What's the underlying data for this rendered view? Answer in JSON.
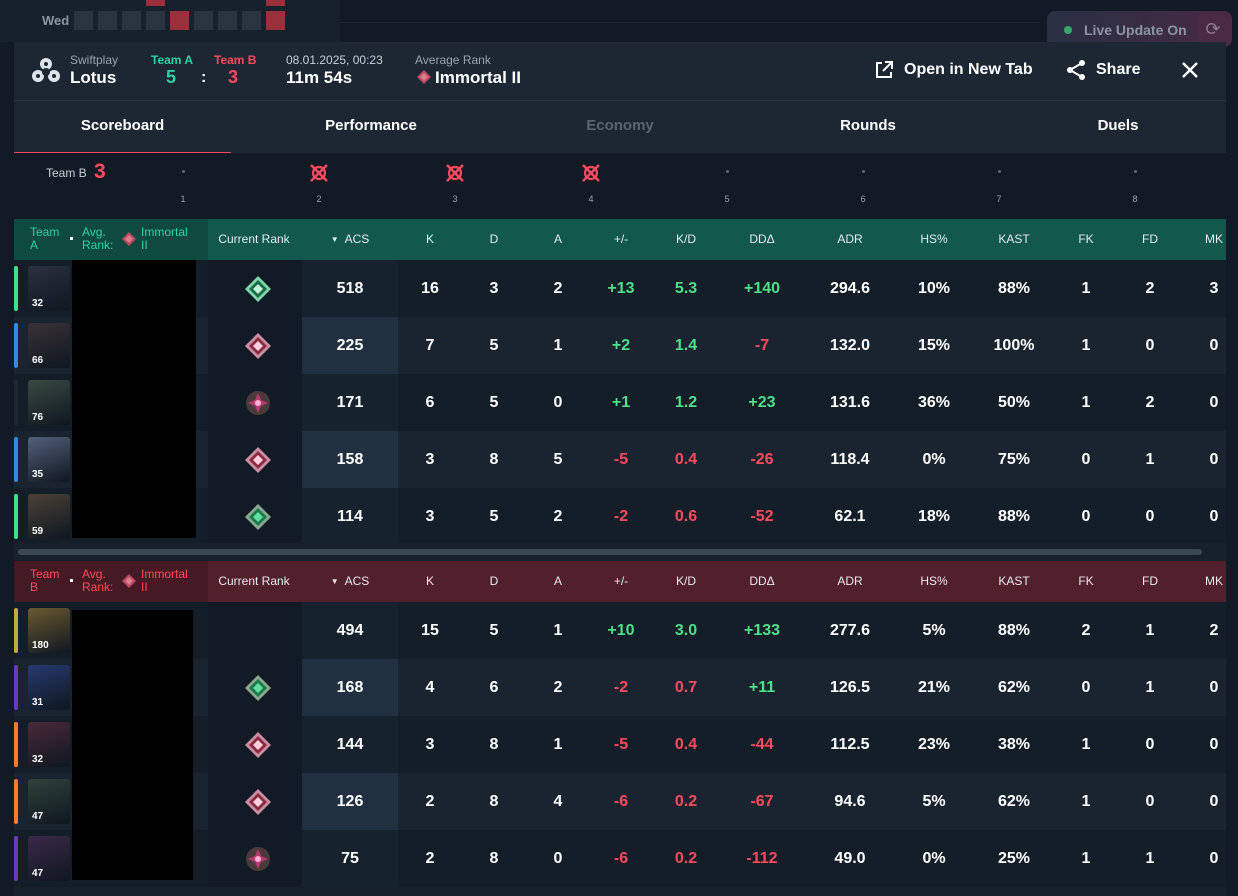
{
  "background": {
    "calendar_day": "Wed",
    "live_update_label": "Live Update On"
  },
  "header": {
    "mode": "Swiftplay",
    "map": "Lotus",
    "team_a_label": "Team A",
    "team_b_label": "Team B",
    "team_a_score": "5",
    "separator": ":",
    "team_b_score": "3",
    "date": "08.01.2025, 00:23",
    "duration": "11m 54s",
    "avg_rank_label": "Average Rank",
    "avg_rank_value": "Immortal II",
    "open_new_tab": "Open in New Tab",
    "share": "Share"
  },
  "tabs": [
    {
      "label": "Scoreboard",
      "active": true
    },
    {
      "label": "Performance"
    },
    {
      "label": "Economy",
      "disabled": true
    },
    {
      "label": "Rounds"
    },
    {
      "label": "Duels"
    }
  ],
  "timeline": {
    "team": "Team B",
    "score": "3",
    "rounds": [
      {
        "num": "1",
        "icon": false
      },
      {
        "num": "2",
        "icon": true
      },
      {
        "num": "3",
        "icon": true
      },
      {
        "num": "4",
        "icon": true
      },
      {
        "num": "5",
        "icon": false
      },
      {
        "num": "6",
        "icon": false
      },
      {
        "num": "7",
        "icon": false
      },
      {
        "num": "8",
        "icon": false
      }
    ]
  },
  "columns": [
    "Current Rank",
    "ACS",
    "K",
    "D",
    "A",
    "+/-",
    "K/D",
    "DDΔ",
    "ADR",
    "HS%",
    "KAST",
    "FK",
    "FD",
    "MK"
  ],
  "team_a": {
    "team_line1": "Team",
    "team_line2": "A",
    "avg_line1": "Avg.",
    "avg_line2": "Rank:",
    "rank_line1": "Immortal",
    "rank_line2": "II",
    "players": [
      {
        "level": "32",
        "bar": "#3ee08a",
        "avatar": "#2a3140",
        "rank": "asc",
        "acs": "518",
        "k": "16",
        "d": "3",
        "a": "2",
        "pm": "+13",
        "kd": "5.3",
        "dd": "+140",
        "adr": "294.6",
        "hs": "10%",
        "kast": "88%",
        "fk": "1",
        "fd": "2",
        "mk": "3"
      },
      {
        "level": "66",
        "bar": "#2f8be0",
        "avatar": "#3a3238",
        "rank": "imm",
        "acs": "225",
        "k": "7",
        "d": "5",
        "a": "1",
        "pm": "+2",
        "kd": "1.4",
        "dd": "-7",
        "adr": "132.0",
        "hs": "15%",
        "kast": "100%",
        "fk": "1",
        "fd": "0",
        "mk": "0"
      },
      {
        "level": "76",
        "bar": "#1c2733",
        "avatar": "#3a4a42",
        "rank": "rad",
        "acs": "171",
        "k": "6",
        "d": "5",
        "a": "0",
        "pm": "+1",
        "kd": "1.2",
        "dd": "+23",
        "adr": "131.6",
        "hs": "36%",
        "kast": "50%",
        "fk": "1",
        "fd": "2",
        "mk": "0"
      },
      {
        "level": "35",
        "bar": "#2f8be0",
        "avatar": "#55607a",
        "rank": "imm",
        "acs": "158",
        "k": "3",
        "d": "8",
        "a": "5",
        "pm": "-5",
        "kd": "0.4",
        "dd": "-26",
        "adr": "118.4",
        "hs": "0%",
        "kast": "75%",
        "fk": "0",
        "fd": "1",
        "mk": "0"
      },
      {
        "level": "59",
        "bar": "#3ee08a",
        "avatar": "#4a4238",
        "rank": "asc2",
        "acs": "114",
        "k": "3",
        "d": "5",
        "a": "2",
        "pm": "-2",
        "kd": "0.6",
        "dd": "-52",
        "adr": "62.1",
        "hs": "18%",
        "kast": "88%",
        "fk": "0",
        "fd": "0",
        "mk": "0"
      }
    ]
  },
  "team_b": {
    "team_line1": "Team",
    "team_line2": "B",
    "avg_line1": "Avg.",
    "avg_line2": "Rank:",
    "rank_line1": "Immortal",
    "rank_line2": "II",
    "players": [
      {
        "level": "180",
        "bar": "#c8a640",
        "avatar": "#6a5a30",
        "rank": "",
        "acs": "494",
        "k": "15",
        "d": "5",
        "a": "1",
        "pm": "+10",
        "kd": "3.0",
        "dd": "+133",
        "adr": "277.6",
        "hs": "5%",
        "kast": "88%",
        "fk": "2",
        "fd": "1",
        "mk": "2"
      },
      {
        "level": "31",
        "bar": "#6a3ab8",
        "avatar": "#283a70",
        "rank": "asc2",
        "acs": "168",
        "k": "4",
        "d": "6",
        "a": "2",
        "pm": "-2",
        "kd": "0.7",
        "dd": "+11",
        "adr": "126.5",
        "hs": "21%",
        "kast": "62%",
        "fk": "0",
        "fd": "1",
        "mk": "0"
      },
      {
        "level": "32",
        "bar": "#ff7a2a",
        "avatar": "#4a2a3a",
        "rank": "imm",
        "acs": "144",
        "k": "3",
        "d": "8",
        "a": "1",
        "pm": "-5",
        "kd": "0.4",
        "dd": "-44",
        "adr": "112.5",
        "hs": "23%",
        "kast": "38%",
        "fk": "1",
        "fd": "0",
        "mk": "0"
      },
      {
        "level": "47",
        "bar": "#ff7a2a",
        "avatar": "#30423a",
        "rank": "imm",
        "acs": "126",
        "k": "2",
        "d": "8",
        "a": "4",
        "pm": "-6",
        "kd": "0.2",
        "dd": "-67",
        "adr": "94.6",
        "hs": "5%",
        "kast": "62%",
        "fk": "1",
        "fd": "0",
        "mk": "0"
      },
      {
        "level": "47",
        "bar": "#6a3ab8",
        "avatar": "#3a2a4a",
        "rank": "rad",
        "acs": "75",
        "k": "2",
        "d": "8",
        "a": "0",
        "pm": "-6",
        "kd": "0.2",
        "dd": "-112",
        "adr": "49.0",
        "hs": "0%",
        "kast": "25%",
        "fk": "1",
        "fd": "1",
        "mk": "0"
      }
    ]
  }
}
